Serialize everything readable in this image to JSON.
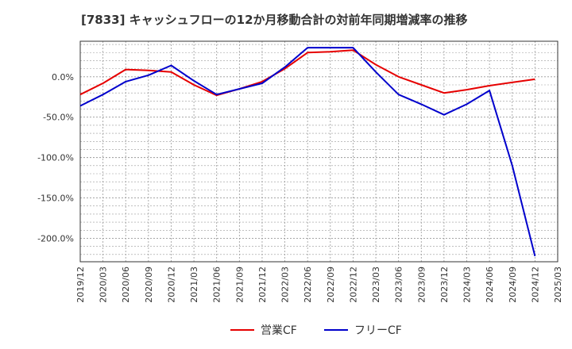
{
  "chart_data": {
    "type": "line",
    "title": "[7833]  キャッシュフローの12か月移動合計の対前年同期増減率の推移",
    "x": [
      "2019/12",
      "2020/03",
      "2020/06",
      "2020/09",
      "2020/12",
      "2021/03",
      "2021/06",
      "2021/09",
      "2021/12",
      "2022/03",
      "2022/06",
      "2022/09",
      "2022/12",
      "2023/03",
      "2023/06",
      "2023/09",
      "2023/12",
      "2024/03",
      "2024/06",
      "2024/09",
      "2024/12",
      "2025/03"
    ],
    "series": [
      {
        "name": "営業CF",
        "color": "#e60000",
        "values": [
          -22,
          -8,
          9,
          8,
          6,
          -10,
          -23,
          -15,
          -6,
          10,
          30,
          31,
          33,
          15,
          0,
          -10,
          -20,
          -16,
          -11,
          -7,
          -3,
          null
        ]
      },
      {
        "name": "フリーCF",
        "color": "#0000cc",
        "values": [
          -36,
          -22,
          -6,
          2,
          14,
          -5,
          -22,
          -15,
          -8,
          12,
          36,
          36,
          36,
          6,
          -22,
          -34,
          -47,
          -34,
          -17,
          -110,
          -222,
          null
        ]
      }
    ],
    "y_ticks": [
      "0.0%",
      "-50.0%",
      "-100.0%",
      "-150.0%",
      "-200.0%"
    ],
    "y_tick_values": [
      0,
      -50,
      -100,
      -150,
      -200
    ],
    "ylim": [
      -229,
      44
    ],
    "grid": true,
    "xlabel": "",
    "ylabel": "",
    "legend_position": "bottom-center"
  }
}
